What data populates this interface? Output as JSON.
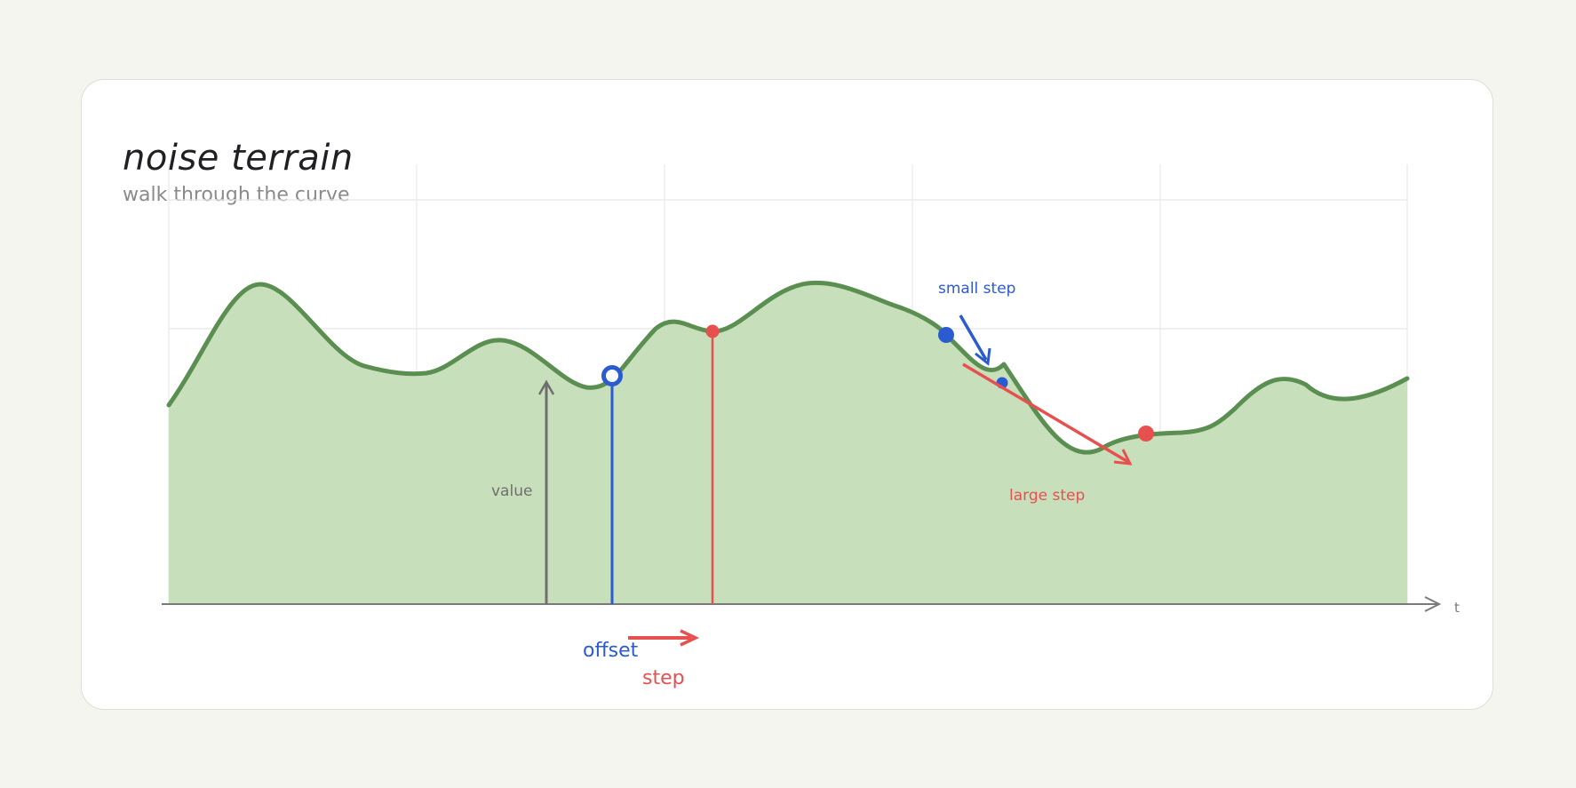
{
  "header": {
    "title": "noise terrain",
    "subtitle": "walk through the curve"
  },
  "labels": {
    "value": "value",
    "axis_t": "t",
    "offset": "offset",
    "step": "step",
    "small_step": "small step",
    "large_step": "large step"
  },
  "colors": {
    "background": "#f5f5ef",
    "card": "#ffffff",
    "terrain_fill": "#c8dfbc",
    "terrain_line": "#5b8f52",
    "axis": "#7a7a7a",
    "grid": "#e6e6e6",
    "blue": "#2a5bd0",
    "red": "#e85050"
  }
}
